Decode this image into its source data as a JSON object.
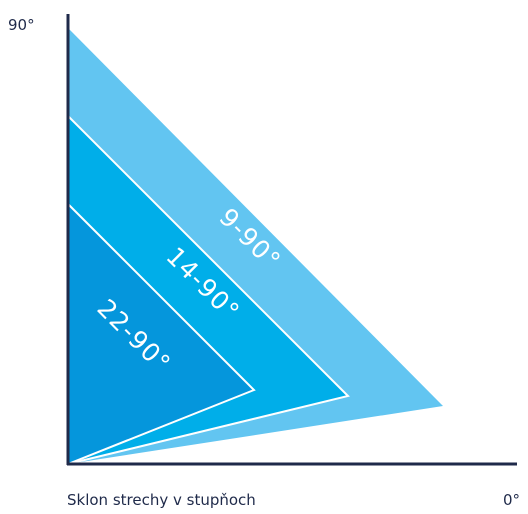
{
  "diagram": {
    "axis": {
      "top_label": "90°",
      "right_label": "0°",
      "bottom_label": "Sklon strechy v stupňoch",
      "color": "#1f2a4a"
    },
    "bands": [
      {
        "label": "9-90°",
        "color": "#62c5f1"
      },
      {
        "label": "14-90°",
        "color": "#00aee9"
      },
      {
        "label": "22-90°",
        "color": "#0596dc"
      }
    ]
  }
}
